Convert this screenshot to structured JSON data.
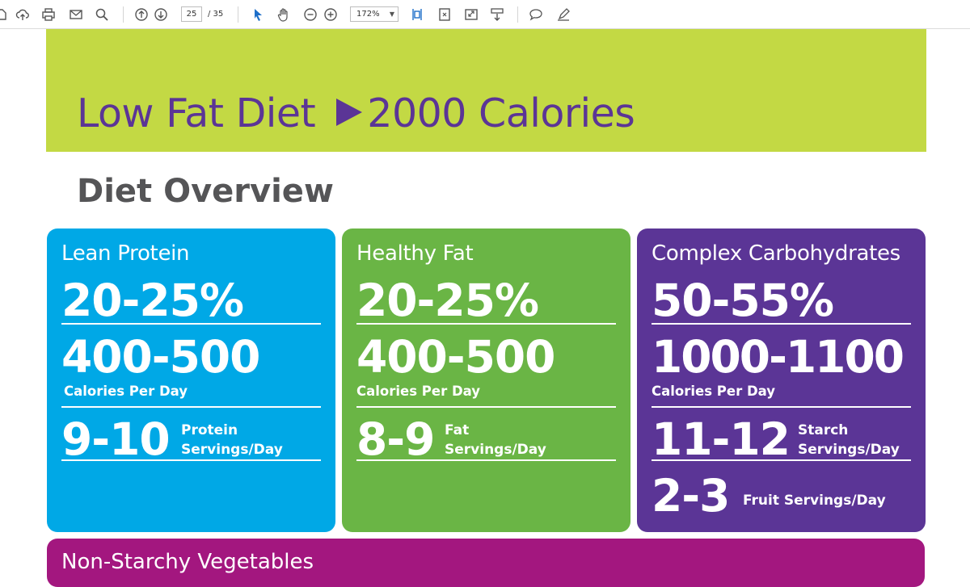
{
  "toolbar": {
    "page_current": "25",
    "page_total": "/ 35",
    "zoom_value": "172%",
    "icons": [
      "cursor-partial-icon",
      "upload-icon",
      "print-icon",
      "email-icon",
      "search-icon",
      "page-up-icon",
      "page-down-icon",
      "select-arrow-icon",
      "hand-icon",
      "zoom-out-icon",
      "zoom-in-icon",
      "fit-width-icon",
      "fit-page-icon",
      "fullscreen-icon",
      "read-mode-icon",
      "comment-icon",
      "highlight-icon"
    ]
  },
  "document": {
    "banner_title_part1": "Low Fat Diet",
    "banner_title_part2": "2000 Calories",
    "section_title": "Diet Overview",
    "cards": [
      {
        "name": "Lean Protein",
        "percent": "20-25%",
        "calories": "400-500",
        "calories_label": "Calories Per Day",
        "servings": "9-10",
        "servings_label_1": "Protein",
        "servings_label_2": "Servings/Day",
        "color": "#00a8e6"
      },
      {
        "name": "Healthy Fat",
        "percent": "20-25%",
        "calories": "400-500",
        "calories_label": "Calories Per Day",
        "servings": "8-9",
        "servings_label_1": "Fat",
        "servings_label_2": "Servings/Day",
        "color": "#6ab545"
      },
      {
        "name": "Complex Carbohydrates",
        "percent": "50-55%",
        "calories": "1000-1100",
        "calories_label": "Calories Per Day",
        "servings": "11-12",
        "servings_label_1": "Starch",
        "servings_label_2": "Servings/Day",
        "fruit_servings": "2-3",
        "fruit_label": "Fruit Servings/Day",
        "color": "#5b3596"
      }
    ],
    "bottom_section_label": "Non-Starchy Vegetables"
  },
  "colors": {
    "banner": "#c3d944",
    "banner_text": "#5b3596",
    "bottom_section": "#a3177f"
  }
}
